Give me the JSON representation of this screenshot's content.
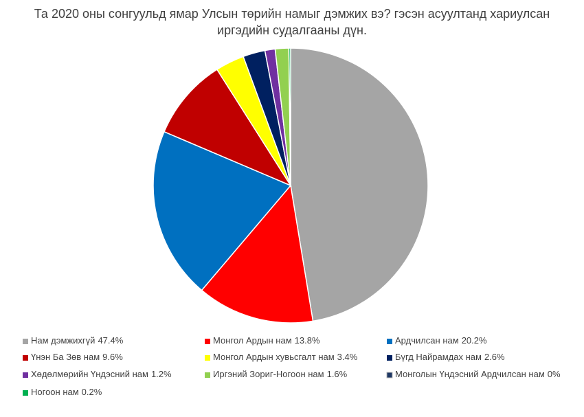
{
  "chart_data": {
    "type": "pie",
    "title": "Та 2020 оны сонгуульд ямар Улсын төрийн намыг дэмжих вэ? гэсэн асуултанд хариулсан иргэдийн судалгааны дүн.",
    "categories": [
      "Нам дэмжихгүй",
      "Монгол Ардын нам",
      "Ардчилсан нам",
      "Үнэн Ба Зөв нам",
      "Монгол Ардын хувьсгалт нам",
      "Бүгд Найрамдах нам",
      "Хөдөлмөрийн Үндэсний нам",
      "Иргэний Зориг-Ногоон нам",
      "Монголын Үндэсний Ардчилсан нам",
      "Ногоон нам"
    ],
    "values": [
      47.4,
      13.8,
      20.2,
      9.6,
      3.4,
      2.6,
      1.2,
      1.6,
      0,
      0.2
    ],
    "value_labels": [
      "47.4%",
      "13.8%",
      "20.2%",
      "9.6%",
      "3.4%",
      "2.6%",
      "1.2%",
      "1.6%",
      "0%",
      "0.2%"
    ],
    "colors": [
      "#a5a5a5",
      "#ff0000",
      "#0070c0",
      "#c00000",
      "#ffff00",
      "#002060",
      "#7030a0",
      "#92d050",
      "#1f3864",
      "#00b050"
    ],
    "legend": "bottom"
  }
}
